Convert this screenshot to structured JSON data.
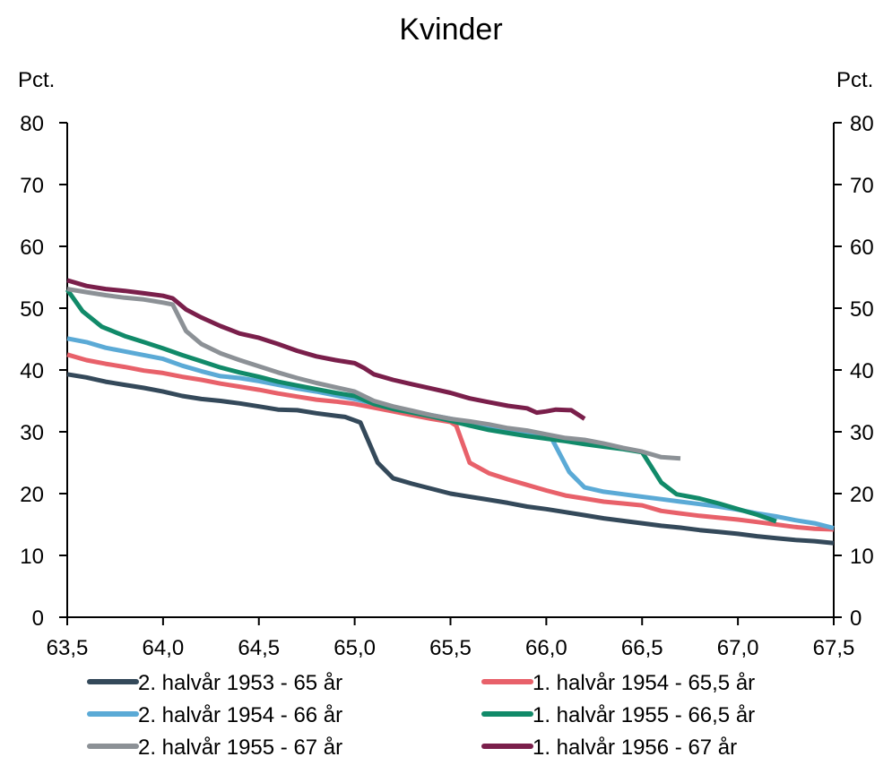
{
  "chart_data": {
    "type": "line",
    "title": "Kvinder",
    "y_unit_left": "Pct.",
    "y_unit_right": "Pct.",
    "xlim": [
      63.5,
      67.5
    ],
    "ylim": [
      0,
      80
    ],
    "x_ticks": [
      63.5,
      64.0,
      64.5,
      65.0,
      65.5,
      66.0,
      66.5,
      67.0,
      67.5
    ],
    "x_tick_labels": [
      "63,5",
      "64,0",
      "64,5",
      "65,0",
      "65,5",
      "66,0",
      "66,5",
      "67,0",
      "67,5"
    ],
    "y_ticks": [
      0,
      10,
      20,
      30,
      40,
      50,
      60,
      70,
      80
    ],
    "y_tick_labels": [
      "0",
      "10",
      "20",
      "30",
      "40",
      "50",
      "60",
      "70",
      "80"
    ],
    "grid": false,
    "legend_position": "bottom",
    "series": [
      {
        "name": "2. halvår 1953 - 65 år",
        "color": "#34495a",
        "points": [
          [
            63.5,
            39.3
          ],
          [
            63.6,
            38.8
          ],
          [
            63.7,
            38.1
          ],
          [
            63.8,
            37.6
          ],
          [
            63.9,
            37.1
          ],
          [
            64.0,
            36.5
          ],
          [
            64.1,
            35.8
          ],
          [
            64.2,
            35.3
          ],
          [
            64.3,
            35.0
          ],
          [
            64.4,
            34.6
          ],
          [
            64.5,
            34.1
          ],
          [
            64.6,
            33.6
          ],
          [
            64.7,
            33.5
          ],
          [
            64.8,
            33.0
          ],
          [
            64.9,
            32.6
          ],
          [
            64.95,
            32.4
          ],
          [
            65.03,
            31.5
          ],
          [
            65.12,
            25.0
          ],
          [
            65.2,
            22.5
          ],
          [
            65.3,
            21.6
          ],
          [
            65.4,
            20.8
          ],
          [
            65.5,
            20.0
          ],
          [
            65.6,
            19.5
          ],
          [
            65.7,
            19.0
          ],
          [
            65.8,
            18.5
          ],
          [
            65.9,
            17.9
          ],
          [
            66.0,
            17.5
          ],
          [
            66.1,
            17.0
          ],
          [
            66.2,
            16.5
          ],
          [
            66.3,
            16.0
          ],
          [
            66.4,
            15.6
          ],
          [
            66.5,
            15.2
          ],
          [
            66.6,
            14.8
          ],
          [
            66.7,
            14.5
          ],
          [
            66.8,
            14.1
          ],
          [
            66.9,
            13.8
          ],
          [
            67.0,
            13.5
          ],
          [
            67.1,
            13.1
          ],
          [
            67.2,
            12.8
          ],
          [
            67.3,
            12.5
          ],
          [
            67.4,
            12.3
          ],
          [
            67.5,
            12.0
          ]
        ]
      },
      {
        "name": "1. halvår 1954 - 65,5 år",
        "color": "#e8616a",
        "points": [
          [
            63.5,
            42.5
          ],
          [
            63.6,
            41.6
          ],
          [
            63.7,
            41.0
          ],
          [
            63.8,
            40.5
          ],
          [
            63.9,
            39.9
          ],
          [
            64.0,
            39.5
          ],
          [
            64.1,
            38.9
          ],
          [
            64.2,
            38.4
          ],
          [
            64.3,
            37.8
          ],
          [
            64.4,
            37.3
          ],
          [
            64.5,
            36.8
          ],
          [
            64.6,
            36.2
          ],
          [
            64.7,
            35.7
          ],
          [
            64.8,
            35.2
          ],
          [
            64.9,
            34.9
          ],
          [
            65.0,
            34.5
          ],
          [
            65.1,
            33.9
          ],
          [
            65.2,
            33.3
          ],
          [
            65.3,
            32.7
          ],
          [
            65.4,
            32.1
          ],
          [
            65.5,
            31.6
          ],
          [
            65.53,
            31.0
          ],
          [
            65.6,
            25.0
          ],
          [
            65.7,
            23.3
          ],
          [
            65.8,
            22.3
          ],
          [
            65.9,
            21.4
          ],
          [
            66.0,
            20.5
          ],
          [
            66.1,
            19.7
          ],
          [
            66.2,
            19.2
          ],
          [
            66.3,
            18.7
          ],
          [
            66.4,
            18.4
          ],
          [
            66.5,
            18.1
          ],
          [
            66.6,
            17.2
          ],
          [
            66.7,
            16.8
          ],
          [
            66.8,
            16.4
          ],
          [
            66.9,
            16.1
          ],
          [
            67.0,
            15.8
          ],
          [
            67.1,
            15.4
          ],
          [
            67.2,
            15.0
          ],
          [
            67.3,
            14.6
          ],
          [
            67.4,
            14.3
          ],
          [
            67.5,
            14.2
          ]
        ]
      },
      {
        "name": "2. halvår 1954 - 66 år",
        "color": "#5baad6",
        "points": [
          [
            63.5,
            45.1
          ],
          [
            63.6,
            44.5
          ],
          [
            63.7,
            43.6
          ],
          [
            63.8,
            43.0
          ],
          [
            63.9,
            42.4
          ],
          [
            64.0,
            41.8
          ],
          [
            64.1,
            40.7
          ],
          [
            64.2,
            39.8
          ],
          [
            64.3,
            39.0
          ],
          [
            64.4,
            38.7
          ],
          [
            64.5,
            38.2
          ],
          [
            64.6,
            37.6
          ],
          [
            64.7,
            37.0
          ],
          [
            64.8,
            36.5
          ],
          [
            64.9,
            35.9
          ],
          [
            65.0,
            35.3
          ],
          [
            65.1,
            34.6
          ],
          [
            65.2,
            33.9
          ],
          [
            65.3,
            33.3
          ],
          [
            65.4,
            32.7
          ],
          [
            65.5,
            32.1
          ],
          [
            65.6,
            31.5
          ],
          [
            65.7,
            30.9
          ],
          [
            65.8,
            30.4
          ],
          [
            65.9,
            29.9
          ],
          [
            66.0,
            29.3
          ],
          [
            66.03,
            28.8
          ],
          [
            66.12,
            23.5
          ],
          [
            66.2,
            21.0
          ],
          [
            66.3,
            20.3
          ],
          [
            66.4,
            19.9
          ],
          [
            66.5,
            19.5
          ],
          [
            66.6,
            19.1
          ],
          [
            66.7,
            18.7
          ],
          [
            66.8,
            18.3
          ],
          [
            66.9,
            17.9
          ],
          [
            67.0,
            17.4
          ],
          [
            67.1,
            16.8
          ],
          [
            67.2,
            16.3
          ],
          [
            67.3,
            15.7
          ],
          [
            67.4,
            15.2
          ],
          [
            67.5,
            14.4
          ]
        ]
      },
      {
        "name": "1. halvår 1955 - 66,5 år",
        "color": "#118a69",
        "points": [
          [
            63.5,
            53.0
          ],
          [
            63.58,
            49.5
          ],
          [
            63.68,
            47.0
          ],
          [
            63.8,
            45.5
          ],
          [
            63.9,
            44.5
          ],
          [
            64.0,
            43.5
          ],
          [
            64.1,
            42.4
          ],
          [
            64.2,
            41.4
          ],
          [
            64.3,
            40.4
          ],
          [
            64.4,
            39.6
          ],
          [
            64.5,
            38.9
          ],
          [
            64.6,
            38.1
          ],
          [
            64.7,
            37.5
          ],
          [
            64.8,
            36.9
          ],
          [
            64.9,
            36.3
          ],
          [
            65.0,
            35.8
          ],
          [
            65.1,
            34.5
          ],
          [
            65.2,
            33.7
          ],
          [
            65.3,
            33.1
          ],
          [
            65.4,
            32.5
          ],
          [
            65.5,
            31.8
          ],
          [
            65.6,
            31.0
          ],
          [
            65.7,
            30.3
          ],
          [
            65.8,
            29.8
          ],
          [
            65.9,
            29.3
          ],
          [
            66.0,
            28.9
          ],
          [
            66.1,
            28.5
          ],
          [
            66.2,
            28.0
          ],
          [
            66.3,
            27.6
          ],
          [
            66.4,
            27.2
          ],
          [
            66.5,
            26.7
          ],
          [
            66.6,
            21.8
          ],
          [
            66.68,
            19.9
          ],
          [
            66.8,
            19.2
          ],
          [
            66.9,
            18.4
          ],
          [
            67.0,
            17.5
          ],
          [
            67.1,
            16.6
          ],
          [
            67.2,
            15.5
          ]
        ]
      },
      {
        "name": "2. halvår 1955 - 67 år",
        "color": "#8c9196",
        "points": [
          [
            63.5,
            53.1
          ],
          [
            63.6,
            52.6
          ],
          [
            63.7,
            52.1
          ],
          [
            63.8,
            51.7
          ],
          [
            63.9,
            51.4
          ],
          [
            64.0,
            50.9
          ],
          [
            64.05,
            50.6
          ],
          [
            64.12,
            46.3
          ],
          [
            64.2,
            44.2
          ],
          [
            64.3,
            42.7
          ],
          [
            64.4,
            41.6
          ],
          [
            64.5,
            40.6
          ],
          [
            64.6,
            39.6
          ],
          [
            64.7,
            38.7
          ],
          [
            64.8,
            37.9
          ],
          [
            64.9,
            37.2
          ],
          [
            65.0,
            36.5
          ],
          [
            65.1,
            35.0
          ],
          [
            65.2,
            34.1
          ],
          [
            65.3,
            33.4
          ],
          [
            65.4,
            32.7
          ],
          [
            65.5,
            32.1
          ],
          [
            65.6,
            31.7
          ],
          [
            65.7,
            31.2
          ],
          [
            65.8,
            30.6
          ],
          [
            65.9,
            30.2
          ],
          [
            66.0,
            29.6
          ],
          [
            66.1,
            29.0
          ],
          [
            66.2,
            28.7
          ],
          [
            66.3,
            28.1
          ],
          [
            66.4,
            27.4
          ],
          [
            66.5,
            26.8
          ],
          [
            66.6,
            25.9
          ],
          [
            66.7,
            25.7
          ]
        ]
      },
      {
        "name": "1. halvår 1956 - 67 år",
        "color": "#7a1f4b",
        "points": [
          [
            63.5,
            54.5
          ],
          [
            63.6,
            53.6
          ],
          [
            63.7,
            53.1
          ],
          [
            63.8,
            52.8
          ],
          [
            63.9,
            52.4
          ],
          [
            64.0,
            52.0
          ],
          [
            64.05,
            51.6
          ],
          [
            64.12,
            49.8
          ],
          [
            64.2,
            48.5
          ],
          [
            64.3,
            47.1
          ],
          [
            64.4,
            45.9
          ],
          [
            64.5,
            45.2
          ],
          [
            64.6,
            44.2
          ],
          [
            64.7,
            43.1
          ],
          [
            64.8,
            42.2
          ],
          [
            64.9,
            41.6
          ],
          [
            65.0,
            41.1
          ],
          [
            65.05,
            40.3
          ],
          [
            65.1,
            39.3
          ],
          [
            65.2,
            38.4
          ],
          [
            65.3,
            37.7
          ],
          [
            65.4,
            37.0
          ],
          [
            65.5,
            36.3
          ],
          [
            65.6,
            35.4
          ],
          [
            65.7,
            34.8
          ],
          [
            65.8,
            34.2
          ],
          [
            65.9,
            33.8
          ],
          [
            65.95,
            33.1
          ],
          [
            66.0,
            33.3
          ],
          [
            66.05,
            33.6
          ],
          [
            66.13,
            33.5
          ],
          [
            66.2,
            32.1
          ]
        ]
      }
    ]
  }
}
